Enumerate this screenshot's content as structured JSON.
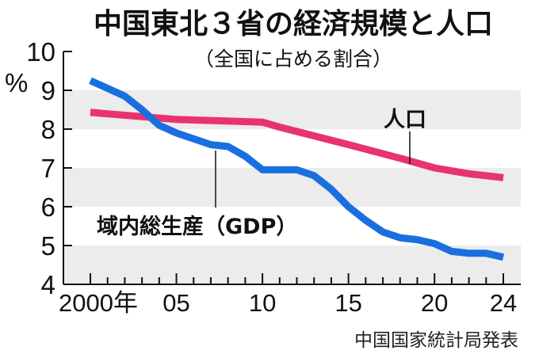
{
  "chart_data": {
    "type": "line",
    "title": "中国東北３省の経済規模と人口",
    "subtitle": "（全国に占める割合）",
    "ylabel": "%",
    "ylim": [
      4,
      10
    ],
    "yticks": [
      "4",
      "5",
      "6",
      "7",
      "8",
      "9",
      "10"
    ],
    "xlim": [
      2000,
      2024
    ],
    "xtick_labels": [
      {
        "year": 2000,
        "label": "2000年"
      },
      {
        "year": 2005,
        "label": "05"
      },
      {
        "year": 2010,
        "label": "10"
      },
      {
        "year": 2015,
        "label": "15"
      },
      {
        "year": 2020,
        "label": "20"
      },
      {
        "year": 2024,
        "label": "24"
      }
    ],
    "grid": "alternating horizontal bands",
    "source": "中国国家統計局発表",
    "series": [
      {
        "name": "人口",
        "color": "#e8336f",
        "x": [
          2000,
          2005,
          2010,
          2011,
          2015,
          2018,
          2020,
          2022,
          2024
        ],
        "values": [
          8.43,
          8.25,
          8.18,
          8.05,
          7.6,
          7.25,
          7.0,
          6.85,
          6.75
        ]
      },
      {
        "name": "域内総生産（GDP）",
        "color": "#1a6fe0",
        "x": [
          2000,
          2001,
          2002,
          2003,
          2004,
          2005,
          2006,
          2007,
          2008,
          2009,
          2010,
          2011,
          2012,
          2013,
          2014,
          2015,
          2016,
          2017,
          2018,
          2019,
          2020,
          2021,
          2022,
          2023,
          2024
        ],
        "values": [
          9.25,
          9.05,
          8.85,
          8.5,
          8.1,
          7.9,
          7.75,
          7.6,
          7.55,
          7.3,
          6.95,
          6.95,
          6.95,
          6.8,
          6.45,
          6.0,
          5.65,
          5.35,
          5.2,
          5.15,
          5.05,
          4.85,
          4.8,
          4.8,
          4.7
        ]
      }
    ]
  }
}
